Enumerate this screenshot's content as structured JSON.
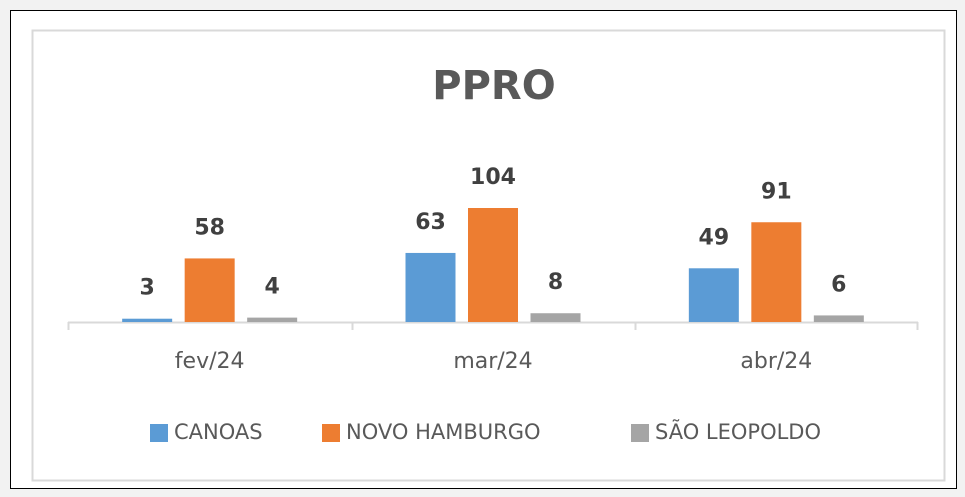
{
  "chart_data": {
    "type": "bar",
    "title": "PPRO",
    "categories": [
      "fev/24",
      "mar/24",
      "abr/24"
    ],
    "series": [
      {
        "name": "CANOAS",
        "color": "#5b9bd5",
        "values": [
          3,
          63,
          49
        ]
      },
      {
        "name": "NOVO HAMBURGO",
        "color": "#ed7d31",
        "values": [
          58,
          104,
          91
        ]
      },
      {
        "name": "SÃO LEOPOLDO",
        "color": "#a5a5a5",
        "values": [
          4,
          8,
          6
        ]
      }
    ],
    "legend": "bottom"
  }
}
